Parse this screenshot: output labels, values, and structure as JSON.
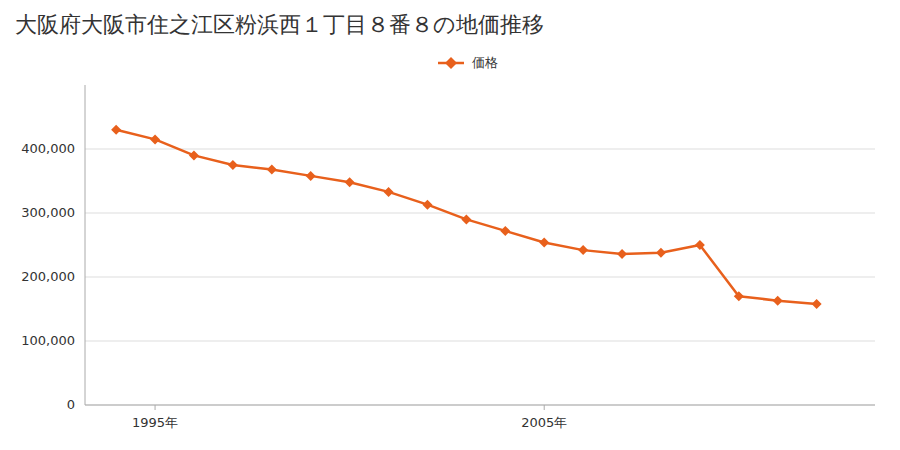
{
  "chart_data": {
    "type": "line",
    "title": "大阪府大阪市住之江区粉浜西１丁目８番８の地価推移",
    "x": [
      1994,
      1995,
      1996,
      1997,
      1998,
      1999,
      2000,
      2001,
      2002,
      2003,
      2004,
      2005,
      2006,
      2007,
      2008,
      2009,
      2010,
      2011,
      2012
    ],
    "series": [
      {
        "name": "価格",
        "color": "#e8601c",
        "marker": "diamond",
        "line_style": "solid",
        "values": [
          430000,
          415000,
          390000,
          375000,
          368000,
          358000,
          348000,
          333000,
          313000,
          290000,
          272000,
          254000,
          242000,
          236000,
          238000,
          250000,
          170000,
          163000,
          158000
        ]
      }
    ],
    "xlim": [
      1993.2,
      2013.5
    ],
    "xticks": [
      {
        "value": 1995,
        "label": "1995年"
      },
      {
        "value": 2005,
        "label": "2005年"
      }
    ],
    "ylim": [
      0,
      500000
    ],
    "yticks": [
      0,
      {
        "value": 100000,
        "label": "100,000"
      },
      {
        "value": 200000,
        "label": "200,000"
      },
      {
        "value": 300000,
        "label": "300,000"
      },
      {
        "value": 400000,
        "label": "400,000"
      }
    ],
    "grid": "y",
    "legend": "top"
  }
}
